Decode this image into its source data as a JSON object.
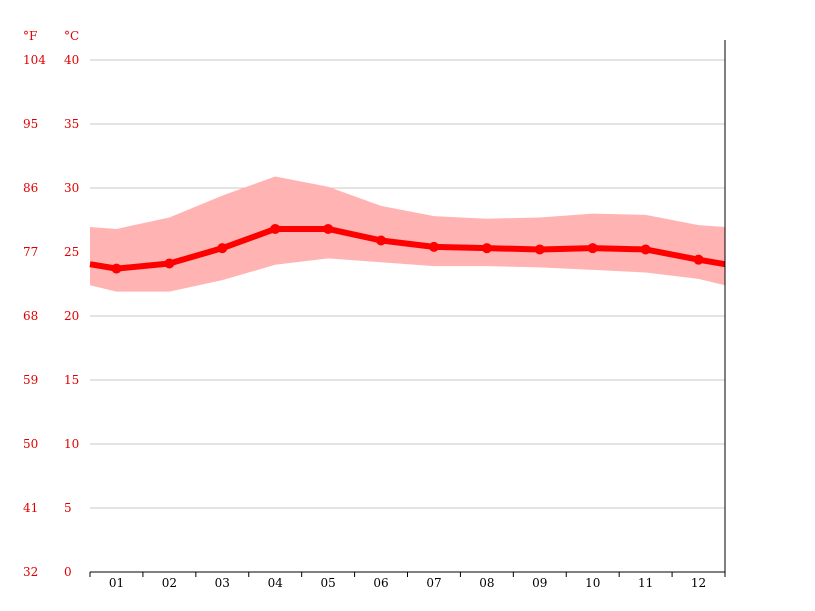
{
  "chart_data": {
    "type": "line",
    "title": "",
    "units": {
      "fahrenheit": "°F",
      "celsius": "°C"
    },
    "y_ticks_celsius": [
      "40",
      "35",
      "30",
      "25",
      "20",
      "15",
      "10",
      "5",
      "0"
    ],
    "y_ticks_fahrenheit": [
      "104",
      "95",
      "86",
      "77",
      "68",
      "59",
      "50",
      "41",
      "32"
    ],
    "ylim": [
      0,
      40
    ],
    "grid": true,
    "categories": [
      "01",
      "02",
      "03",
      "04",
      "05",
      "06",
      "07",
      "08",
      "09",
      "10",
      "11",
      "12"
    ],
    "series": [
      {
        "name": "",
        "role": "mean",
        "values": [
          23.7,
          24.1,
          25.3,
          26.8,
          26.8,
          25.9,
          25.4,
          25.3,
          25.2,
          25.3,
          25.2,
          24.4
        ]
      },
      {
        "name": "",
        "role": "max",
        "values": [
          26.8,
          27.7,
          29.4,
          30.9,
          30.1,
          28.6,
          27.8,
          27.6,
          27.7,
          28.0,
          27.9,
          27.1
        ]
      },
      {
        "name": "",
        "role": "min",
        "values": [
          21.9,
          21.9,
          22.8,
          24.0,
          24.5,
          24.2,
          23.9,
          23.9,
          23.8,
          23.6,
          23.4,
          22.9
        ]
      }
    ],
    "colors": {
      "mean_line": "#ff0000",
      "range_band": "#ffb3b3",
      "axis_labels": "#e00000"
    }
  }
}
